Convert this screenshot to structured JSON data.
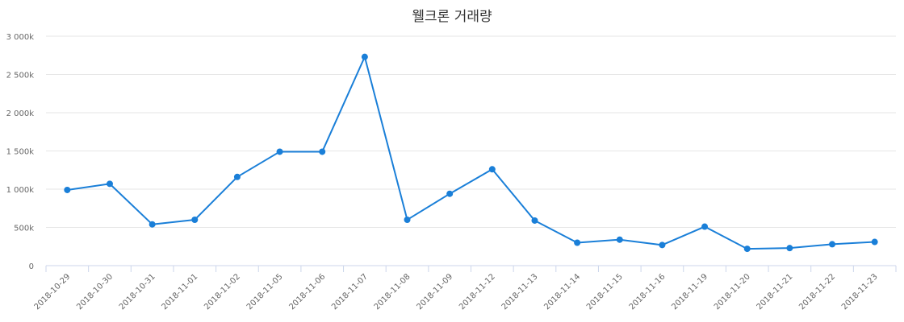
{
  "chart_data": {
    "type": "line",
    "title": "웰크론 거래량",
    "xlabel": "",
    "ylabel": "",
    "categories": [
      "2018-10-29",
      "2018-10-30",
      "2018-10-31",
      "2018-11-01",
      "2018-11-02",
      "2018-11-05",
      "2018-11-06",
      "2018-11-07",
      "2018-11-08",
      "2018-11-09",
      "2018-11-12",
      "2018-11-13",
      "2018-11-14",
      "2018-11-15",
      "2018-11-16",
      "2018-11-19",
      "2018-11-20",
      "2018-11-21",
      "2018-11-22",
      "2018-11-23"
    ],
    "series": [
      {
        "values": [
          990000,
          1070000,
          540000,
          600000,
          1160000,
          1490000,
          1490000,
          2730000,
          600000,
          940000,
          1260000,
          590000,
          300000,
          340000,
          270000,
          510000,
          220000,
          230000,
          280000,
          310000
        ]
      }
    ],
    "ylim": [
      0,
      3000000
    ],
    "yticks": [
      0,
      500000,
      1000000,
      1500000,
      2000000,
      2500000,
      3000000
    ],
    "ytick_labels": [
      "0",
      "500k",
      "1 000k",
      "1 500k",
      "2 000k",
      "2 500k",
      "3 000k"
    ],
    "grid": true,
    "legend": "none",
    "colors": {
      "line": "#1a7fd8",
      "grid": "#e6e6e6",
      "axis": "#ccd6eb"
    }
  }
}
